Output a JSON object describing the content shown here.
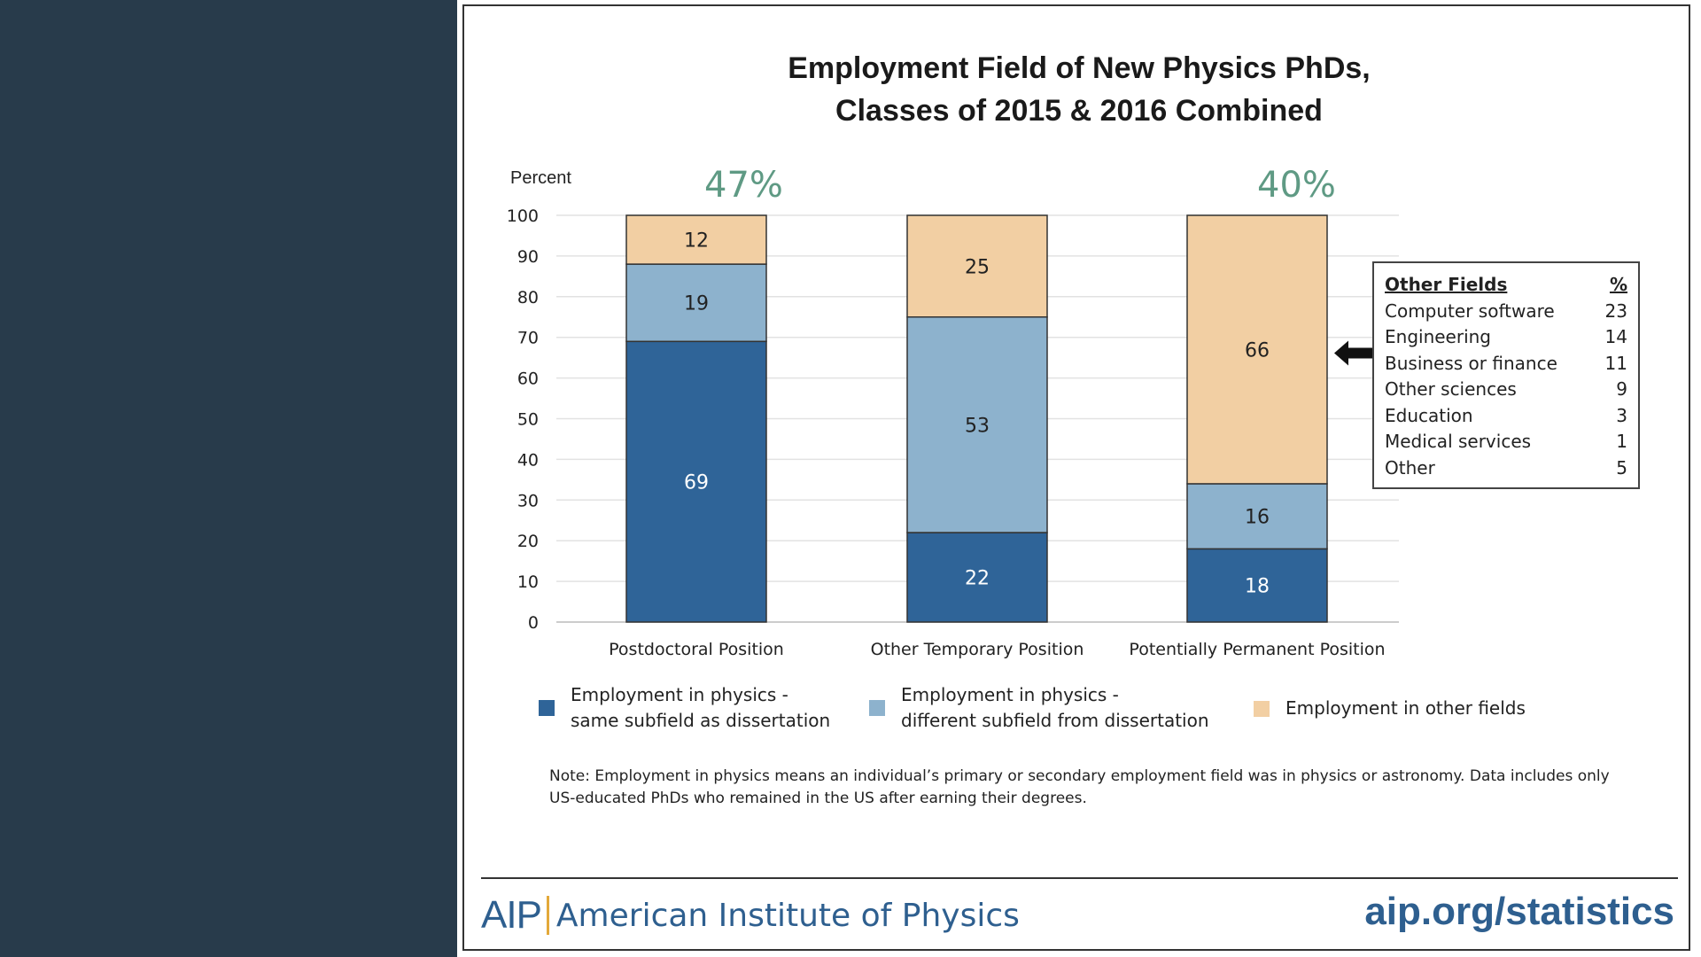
{
  "chart_data": {
    "type": "bar",
    "stacked": true,
    "title_lines": [
      "Employment Field of New Physics PhDs,",
      "Classes of 2015 & 2016 Combined"
    ],
    "ylabel": "Percent",
    "ylim": [
      0,
      100
    ],
    "yticks": [
      "0",
      "10",
      "20",
      "30",
      "40",
      "50",
      "60",
      "70",
      "80",
      "90",
      "100"
    ],
    "grid": true,
    "categories": [
      "Postdoctoral Position",
      "Other Temporary Position",
      "Potentially Permanent Position"
    ],
    "series": [
      {
        "name": "Employment in physics - same subfield as dissertation",
        "color": "#2f6498",
        "values": [
          69,
          22,
          18
        ]
      },
      {
        "name": "Employment in physics - different subfield from dissertation",
        "color": "#8db2cd",
        "values": [
          19,
          53,
          16
        ]
      },
      {
        "name": "Employment in other fields",
        "color": "#f2cfa3",
        "values": [
          12,
          25,
          66
        ]
      }
    ],
    "callouts": [
      {
        "category": "Postdoctoral Position",
        "text": "47%"
      },
      {
        "category": "Potentially Permanent Position",
        "text": "40%"
      }
    ],
    "legend_position": "bottom"
  },
  "legend": {
    "items": [
      {
        "line1": "Employment in physics -",
        "line2": "same subfield as dissertation",
        "color": "#2f6498"
      },
      {
        "line1": "Employment in physics -",
        "line2": "different subfield from dissertation",
        "color": "#8db2cd"
      },
      {
        "line1": "Employment in other fields",
        "line2": "",
        "color": "#f2cfa3"
      }
    ]
  },
  "other_fields": {
    "header_label": "Other Fields",
    "header_pct": "%",
    "rows": [
      {
        "label": "Computer software",
        "value": "23"
      },
      {
        "label": "Engineering",
        "value": "14"
      },
      {
        "label": "Business or finance",
        "value": "11"
      },
      {
        "label": "Other sciences",
        "value": "9"
      },
      {
        "label": "Education",
        "value": "3"
      },
      {
        "label": "Medical services",
        "value": "1"
      },
      {
        "label": "Other",
        "value": "5"
      }
    ]
  },
  "note": {
    "line1": "Note: Employment in physics means an individual’s primary or secondary employment field was in physics or astronomy. Data includes only",
    "line2": "US-educated PhDs who remained in the US after earning their degrees."
  },
  "footer": {
    "logo_mark": "AIP",
    "org_name": "American Institute of Physics",
    "url": "aip.org/statistics"
  },
  "colors": {
    "background_panel": "#283b4b",
    "accent_blue": "#2e5f8f",
    "callout_green": "#5f9a84",
    "logo_bar": "#e3a93a"
  }
}
